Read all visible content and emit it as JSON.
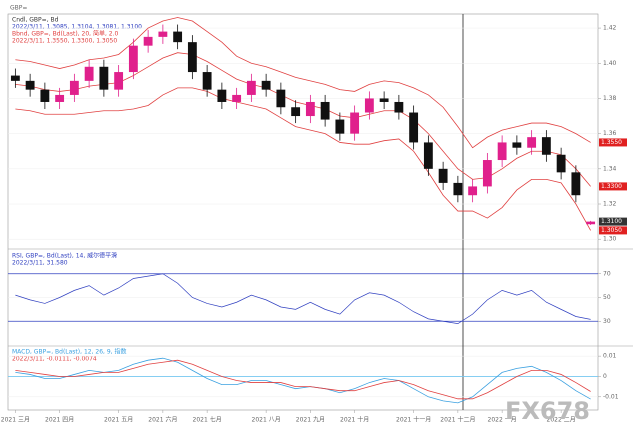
{
  "chart_data": {
    "type": "candlestick",
    "header": "GBP=",
    "legend": [
      "Cndl, GBP=, Bd",
      "2022/3/11, 1.3085, 1.3104, 1.3081, 1.3100",
      "Bbnd, GBP=, Bd(Last), 20, 简单, 2.0",
      "2022/3/11, 1.3550, 1.3300, 1.3050"
    ],
    "watermark": "FX678",
    "up_color": "#e0208c",
    "down_color": "#111111",
    "band_color": "#e04040",
    "categories": [
      "2021 三月",
      null,
      null,
      "2021 四月",
      null,
      null,
      null,
      "2021 五月",
      null,
      null,
      "2021 六月",
      null,
      null,
      "2021 七月",
      null,
      null,
      null,
      "2021 八月",
      null,
      null,
      "2021 九月",
      null,
      null,
      "2021 十月",
      null,
      null,
      null,
      "2021 十一月",
      null,
      null,
      "2021 十二月",
      null,
      null,
      "2022 一月",
      null,
      null,
      null,
      "2022 二月",
      null,
      null
    ],
    "open": [
      1.393,
      1.39,
      1.385,
      1.378,
      1.382,
      1.39,
      1.398,
      1.385,
      1.395,
      1.41,
      1.415,
      1.418,
      1.412,
      1.395,
      1.385,
      1.378,
      1.382,
      1.39,
      1.385,
      1.375,
      1.37,
      1.378,
      1.368,
      1.36,
      1.372,
      1.38,
      1.378,
      1.372,
      1.355,
      1.34,
      1.332,
      1.325,
      1.33,
      1.345,
      1.355,
      1.352,
      1.358,
      1.348,
      1.338,
      1.3085
    ],
    "high": [
      1.397,
      1.394,
      1.389,
      1.386,
      1.394,
      1.402,
      1.402,
      1.399,
      1.414,
      1.419,
      1.422,
      1.422,
      1.416,
      1.399,
      1.389,
      1.386,
      1.394,
      1.394,
      1.389,
      1.379,
      1.382,
      1.382,
      1.372,
      1.376,
      1.384,
      1.384,
      1.382,
      1.376,
      1.359,
      1.344,
      1.336,
      1.334,
      1.349,
      1.359,
      1.359,
      1.362,
      1.362,
      1.352,
      1.342,
      1.3104
    ],
    "low": [
      1.386,
      1.381,
      1.374,
      1.374,
      1.378,
      1.386,
      1.381,
      1.381,
      1.391,
      1.406,
      1.411,
      1.408,
      1.391,
      1.381,
      1.374,
      1.374,
      1.378,
      1.381,
      1.371,
      1.366,
      1.366,
      1.364,
      1.356,
      1.356,
      1.368,
      1.374,
      1.368,
      1.351,
      1.336,
      1.328,
      1.321,
      1.321,
      1.326,
      1.341,
      1.348,
      1.348,
      1.344,
      1.334,
      1.321,
      1.3081
    ],
    "close": [
      1.39,
      1.385,
      1.378,
      1.382,
      1.39,
      1.398,
      1.385,
      1.395,
      1.41,
      1.415,
      1.418,
      1.412,
      1.395,
      1.385,
      1.378,
      1.382,
      1.39,
      1.385,
      1.375,
      1.37,
      1.378,
      1.368,
      1.36,
      1.372,
      1.38,
      1.378,
      1.372,
      1.355,
      1.34,
      1.332,
      1.325,
      1.33,
      1.345,
      1.355,
      1.352,
      1.358,
      1.348,
      1.338,
      1.325,
      1.31
    ],
    "upper": [
      1.402,
      1.401,
      1.399,
      1.397,
      1.399,
      1.402,
      1.403,
      1.405,
      1.412,
      1.42,
      1.424,
      1.426,
      1.424,
      1.418,
      1.412,
      1.404,
      1.4,
      1.398,
      1.395,
      1.392,
      1.39,
      1.388,
      1.385,
      1.384,
      1.388,
      1.39,
      1.389,
      1.386,
      1.382,
      1.375,
      1.364,
      1.352,
      1.358,
      1.362,
      1.364,
      1.366,
      1.366,
      1.364,
      1.36,
      1.355
    ],
    "middle": [
      1.388,
      1.387,
      1.385,
      1.384,
      1.385,
      1.387,
      1.388,
      1.389,
      1.393,
      1.398,
      1.403,
      1.406,
      1.405,
      1.401,
      1.396,
      1.391,
      1.388,
      1.386,
      1.382,
      1.378,
      1.376,
      1.374,
      1.37,
      1.369,
      1.371,
      1.373,
      1.373,
      1.368,
      1.36,
      1.35,
      1.34,
      1.334,
      1.335,
      1.34,
      1.346,
      1.35,
      1.35,
      1.348,
      1.34,
      1.33
    ],
    "lower": [
      1.374,
      1.373,
      1.371,
      1.371,
      1.371,
      1.372,
      1.373,
      1.373,
      1.374,
      1.376,
      1.382,
      1.386,
      1.386,
      1.384,
      1.38,
      1.378,
      1.376,
      1.374,
      1.369,
      1.364,
      1.362,
      1.36,
      1.355,
      1.354,
      1.354,
      1.356,
      1.357,
      1.35,
      1.338,
      1.325,
      1.316,
      1.316,
      1.312,
      1.318,
      1.328,
      1.334,
      1.334,
      1.332,
      1.32,
      1.305
    ],
    "ylim": [
      1.295,
      1.428
    ],
    "yticks": [
      {
        "value": 1.3,
        "label": "1.30"
      },
      1.32,
      1.34,
      1.36,
      1.38,
      {
        "value": 1.4,
        "label": "1.40"
      },
      1.42
    ],
    "price_markers": [
      {
        "value": 1.355,
        "label": "1.3550",
        "color": "#e02020"
      },
      {
        "value": 1.33,
        "label": "1.3300",
        "color": "#e02020"
      },
      {
        "value": 1.31,
        "label": "1.3100",
        "color": "#333333"
      },
      {
        "value": 1.305,
        "label": "1.3050",
        "color": "#e02020"
      }
    ],
    "rsi": {
      "legend": [
        "RSI, GBP=, Bd(Last), 14, 威尔德平滑",
        "2022/3/11, 31.580"
      ],
      "color": "#3040c0",
      "level_color": "#3040c0",
      "values": [
        52,
        48,
        45,
        50,
        56,
        60,
        52,
        58,
        66,
        68,
        70,
        62,
        50,
        45,
        42,
        46,
        52,
        48,
        42,
        40,
        46,
        40,
        36,
        48,
        54,
        52,
        46,
        38,
        32,
        30,
        28,
        36,
        48,
        56,
        52,
        56,
        46,
        40,
        34,
        31.58
      ],
      "ylim": [
        10,
        90
      ],
      "levels": [
        70,
        30
      ],
      "yticks": [
        70,
        50,
        30
      ]
    },
    "macd": {
      "legend": [
        "MACD, GBP=, Bd(Last), 12, 26, 9, 指数",
        "2022/3/11, -0.0111, -0.0074"
      ],
      "series": [
        {
          "name": "MACD",
          "color": "#3aa0e0",
          "values": [
            0.002,
            0.001,
            -0.001,
            -0.001,
            0.001,
            0.003,
            0.002,
            0.003,
            0.006,
            0.008,
            0.009,
            0.007,
            0.003,
            -0.001,
            -0.004,
            -0.004,
            -0.002,
            -0.002,
            -0.004,
            -0.006,
            -0.005,
            -0.006,
            -0.008,
            -0.006,
            -0.003,
            -0.001,
            -0.002,
            -0.006,
            -0.01,
            -0.012,
            -0.013,
            -0.01,
            -0.004,
            0.002,
            0.004,
            0.005,
            0.002,
            -0.002,
            -0.007,
            -0.0111
          ]
        },
        {
          "name": "Signal",
          "color": "#e04040",
          "values": [
            0.003,
            0.002,
            0.001,
            0,
            0,
            0.001,
            0.002,
            0.002,
            0.004,
            0.006,
            0.007,
            0.008,
            0.006,
            0.003,
            0,
            -0.002,
            -0.003,
            -0.003,
            -0.003,
            -0.005,
            -0.005,
            -0.006,
            -0.007,
            -0.007,
            -0.005,
            -0.003,
            -0.002,
            -0.004,
            -0.007,
            -0.009,
            -0.011,
            -0.011,
            -0.008,
            -0.004,
            0,
            0.003,
            0.003,
            0.001,
            -0.003,
            -0.0074
          ]
        }
      ],
      "ylim": [
        -0.016,
        0.014
      ],
      "yticks": [
        0.01,
        0,
        -0.01
      ],
      "zero_color": "#60c0f0"
    }
  }
}
